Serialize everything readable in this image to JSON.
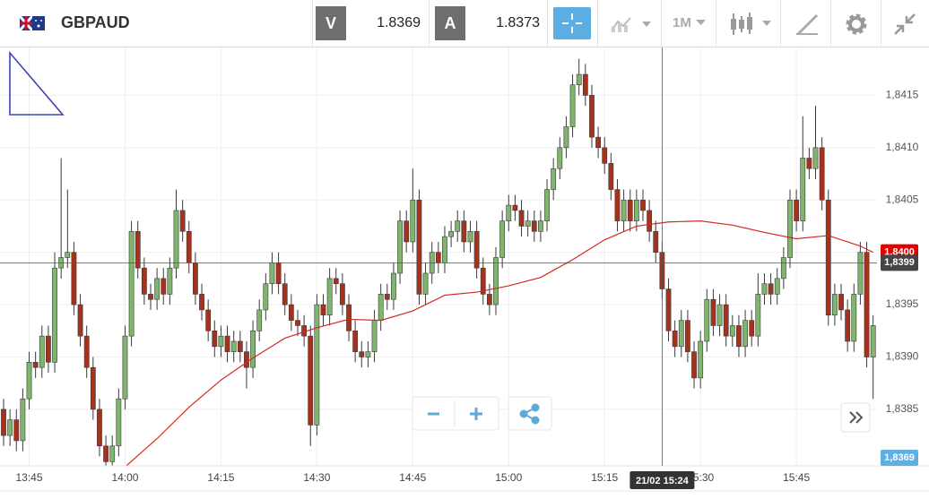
{
  "toolbar": {
    "symbol": "GBPAUD",
    "bid_label": "V",
    "bid": 1.8369,
    "ask_label": "A",
    "ask": 1.8373,
    "timeframe": "1M"
  },
  "chart_data": {
    "type": "candlestick",
    "x": [
      "13:41",
      "13:42",
      "13:43",
      "13:44",
      "13:45",
      "13:46",
      "13:47",
      "13:48",
      "13:49",
      "13:50",
      "13:51",
      "13:52",
      "13:53",
      "13:54",
      "13:55",
      "13:56",
      "13:57",
      "13:58",
      "13:59",
      "14:00",
      "14:01",
      "14:02",
      "14:03",
      "14:04",
      "14:05",
      "14:06",
      "14:07",
      "14:08",
      "14:09",
      "14:10",
      "14:11",
      "14:12",
      "14:13",
      "14:14",
      "14:15",
      "14:16",
      "14:17",
      "14:18",
      "14:19",
      "14:20",
      "14:21",
      "14:22",
      "14:23",
      "14:24",
      "14:25",
      "14:26",
      "14:27",
      "14:28",
      "14:29",
      "14:30",
      "14:31",
      "14:32",
      "14:33",
      "14:34",
      "14:35",
      "14:36",
      "14:37",
      "14:38",
      "14:39",
      "14:40",
      "14:41",
      "14:42",
      "14:43",
      "14:44",
      "14:45",
      "14:46",
      "14:47",
      "14:48",
      "14:49",
      "14:50",
      "14:51",
      "14:52",
      "14:53",
      "14:54",
      "14:55",
      "14:56",
      "14:57",
      "14:58",
      "14:59",
      "15:00",
      "15:01",
      "15:02",
      "15:03",
      "15:04",
      "15:05",
      "15:06",
      "15:07",
      "15:08",
      "15:09",
      "15:10",
      "15:11",
      "15:12",
      "15:13",
      "15:14",
      "15:15",
      "15:16",
      "15:17",
      "15:18",
      "15:19",
      "15:20",
      "15:21",
      "15:22",
      "15:23",
      "15:24",
      "15:25",
      "15:26",
      "15:27",
      "15:28",
      "15:29",
      "15:30",
      "15:31",
      "15:32",
      "15:33",
      "15:34",
      "15:35",
      "15:36",
      "15:37",
      "15:38",
      "15:39",
      "15:40",
      "15:41",
      "15:42",
      "15:43",
      "15:44",
      "15:45",
      "15:46",
      "15:47",
      "15:48",
      "15:49",
      "15:50",
      "15:51",
      "15:52",
      "15:53",
      "15:54",
      "15:55",
      "15:56",
      "15:57"
    ],
    "open": [
      1.8385,
      1.83825,
      1.8384,
      1.8382,
      1.8386,
      1.83895,
      1.8389,
      1.8392,
      1.83895,
      1.83985,
      1.83995,
      1.84,
      1.8395,
      1.8392,
      1.8389,
      1.8385,
      1.83815,
      1.838,
      1.83815,
      1.8386,
      1.8392,
      1.8402,
      1.83985,
      1.8396,
      1.83955,
      1.83975,
      1.8396,
      1.83985,
      1.8404,
      1.8402,
      1.8399,
      1.8396,
      1.83945,
      1.83925,
      1.8391,
      1.8392,
      1.83905,
      1.83915,
      1.83905,
      1.8389,
      1.83925,
      1.83945,
      1.8397,
      1.8399,
      1.8397,
      1.8395,
      1.83935,
      1.8393,
      1.8392,
      1.83835,
      1.8395,
      1.8394,
      1.83975,
      1.8397,
      1.8395,
      1.83925,
      1.83905,
      1.839,
      1.83905,
      1.83935,
      1.8396,
      1.83955,
      1.8398,
      1.8403,
      1.8401,
      1.8405,
      1.8396,
      1.8398,
      1.84,
      1.8399,
      1.84015,
      1.8402,
      1.8403,
      1.8401,
      1.8402,
      1.83985,
      1.8396,
      1.8395,
      1.83995,
      1.8403,
      1.84045,
      1.8404,
      1.84025,
      1.8403,
      1.8402,
      1.8403,
      1.8406,
      1.8408,
      1.841,
      1.8412,
      1.8416,
      1.8417,
      1.8415,
      1.8411,
      1.841,
      1.84085,
      1.8406,
      1.8403,
      1.8405,
      1.8403,
      1.8405,
      1.8404,
      1.8402,
      1.84,
      1.83965,
      1.83925,
      1.8391,
      1.83935,
      1.83905,
      1.8388,
      1.83915,
      1.83955,
      1.8393,
      1.8395,
      1.8392,
      1.8393,
      1.8391,
      1.83935,
      1.8392,
      1.8396,
      1.8397,
      1.8396,
      1.83975,
      1.83995,
      1.8405,
      1.8403,
      1.8409,
      1.8408,
      1.841,
      1.8405,
      1.8394,
      1.8396,
      1.83945,
      1.83915,
      1.8396,
      1.84,
      1.839
    ],
    "high": [
      1.8386,
      1.8385,
      1.8385,
      1.8387,
      1.83905,
      1.83905,
      1.8393,
      1.8393,
      1.84,
      1.8409,
      1.8406,
      1.8401,
      1.8396,
      1.8393,
      1.839,
      1.8386,
      1.83825,
      1.83825,
      1.8387,
      1.8393,
      1.8403,
      1.8403,
      1.83995,
      1.8397,
      1.83985,
      1.83985,
      1.83995,
      1.8406,
      1.8405,
      1.8403,
      1.84,
      1.8397,
      1.83955,
      1.83935,
      1.8393,
      1.8393,
      1.83925,
      1.83925,
      1.83915,
      1.83935,
      1.83955,
      1.8398,
      1.84,
      1.84,
      1.8398,
      1.8396,
      1.83945,
      1.8394,
      1.8393,
      1.8396,
      1.8396,
      1.83985,
      1.83985,
      1.8398,
      1.8396,
      1.83935,
      1.83915,
      1.83915,
      1.83945,
      1.8397,
      1.8397,
      1.8399,
      1.8404,
      1.8404,
      1.8408,
      1.8406,
      1.8399,
      1.8401,
      1.8401,
      1.84025,
      1.8403,
      1.8404,
      1.8404,
      1.8403,
      1.8403,
      1.83995,
      1.8397,
      1.84005,
      1.8404,
      1.84055,
      1.84055,
      1.8405,
      1.8404,
      1.8404,
      1.8404,
      1.8407,
      1.8409,
      1.8411,
      1.8413,
      1.8417,
      1.84185,
      1.8418,
      1.8416,
      1.8412,
      1.8411,
      1.84095,
      1.8407,
      1.8406,
      1.8406,
      1.8406,
      1.8406,
      1.8405,
      1.8403,
      1.8401,
      1.83975,
      1.83935,
      1.83945,
      1.83945,
      1.83915,
      1.83925,
      1.83965,
      1.83965,
      1.8396,
      1.8396,
      1.8394,
      1.8394,
      1.83945,
      1.83945,
      1.8398,
      1.8398,
      1.8398,
      1.83985,
      1.84005,
      1.8406,
      1.8406,
      1.8413,
      1.841,
      1.8414,
      1.8411,
      1.8406,
      1.8397,
      1.8397,
      1.83955,
      1.8397,
      1.8401,
      1.8401,
      1.8394
    ],
    "low": [
      1.83815,
      1.83815,
      1.8381,
      1.8381,
      1.8385,
      1.8388,
      1.8388,
      1.83885,
      1.83885,
      1.83975,
      1.83985,
      1.8394,
      1.8391,
      1.8388,
      1.8384,
      1.83805,
      1.8379,
      1.8379,
      1.83805,
      1.8385,
      1.8391,
      1.83975,
      1.8395,
      1.83945,
      1.83945,
      1.8395,
      1.8395,
      1.83975,
      1.8401,
      1.8398,
      1.8395,
      1.83935,
      1.83915,
      1.839,
      1.839,
      1.83895,
      1.83895,
      1.83895,
      1.8387,
      1.8388,
      1.83915,
      1.83935,
      1.8396,
      1.8396,
      1.8394,
      1.83925,
      1.8392,
      1.8391,
      1.83815,
      1.83825,
      1.8393,
      1.8393,
      1.8396,
      1.8394,
      1.83915,
      1.83895,
      1.8389,
      1.8389,
      1.83895,
      1.83925,
      1.83945,
      1.83945,
      1.8397,
      1.84,
      1.84,
      1.8395,
      1.8395,
      1.8397,
      1.8398,
      1.8398,
      1.84005,
      1.8401,
      1.84,
      1.84,
      1.83975,
      1.8395,
      1.8394,
      1.8394,
      1.83985,
      1.8402,
      1.8403,
      1.84015,
      1.84015,
      1.8401,
      1.8401,
      1.8402,
      1.8405,
      1.8407,
      1.8409,
      1.8411,
      1.8415,
      1.8414,
      1.841,
      1.8409,
      1.84075,
      1.8405,
      1.8402,
      1.8402,
      1.8402,
      1.8402,
      1.8403,
      1.8401,
      1.8399,
      1.83955,
      1.83915,
      1.839,
      1.839,
      1.83895,
      1.8387,
      1.8387,
      1.83905,
      1.8392,
      1.8392,
      1.8391,
      1.8391,
      1.839,
      1.839,
      1.8391,
      1.8391,
      1.8395,
      1.8395,
      1.8395,
      1.83965,
      1.83985,
      1.8402,
      1.8402,
      1.8407,
      1.8407,
      1.8404,
      1.8393,
      1.8393,
      1.83935,
      1.83905,
      1.83905,
      1.8395,
      1.8389,
      1.8386
    ],
    "close": [
      1.83825,
      1.8384,
      1.8382,
      1.8386,
      1.83895,
      1.8389,
      1.8392,
      1.83895,
      1.83985,
      1.83995,
      1.84,
      1.8395,
      1.8392,
      1.8389,
      1.8385,
      1.83815,
      1.838,
      1.83815,
      1.8386,
      1.8392,
      1.8402,
      1.83985,
      1.8396,
      1.83955,
      1.83975,
      1.8396,
      1.83985,
      1.8404,
      1.8402,
      1.8399,
      1.8396,
      1.83945,
      1.83925,
      1.8391,
      1.8392,
      1.83905,
      1.83915,
      1.83905,
      1.8389,
      1.83925,
      1.83945,
      1.8397,
      1.8399,
      1.8397,
      1.8395,
      1.83935,
      1.8393,
      1.8392,
      1.83835,
      1.8395,
      1.8394,
      1.83975,
      1.8397,
      1.8395,
      1.83925,
      1.83905,
      1.839,
      1.83905,
      1.83935,
      1.8396,
      1.83955,
      1.8398,
      1.8403,
      1.8401,
      1.8405,
      1.8396,
      1.8398,
      1.84,
      1.8399,
      1.84015,
      1.8402,
      1.8403,
      1.8401,
      1.8402,
      1.83985,
      1.8396,
      1.8395,
      1.83995,
      1.8403,
      1.84045,
      1.8404,
      1.84025,
      1.8403,
      1.8402,
      1.8403,
      1.8406,
      1.8408,
      1.841,
      1.8412,
      1.8416,
      1.8417,
      1.8415,
      1.8411,
      1.841,
      1.84085,
      1.8406,
      1.8403,
      1.8405,
      1.8403,
      1.8405,
      1.8404,
      1.8402,
      1.84,
      1.83965,
      1.83925,
      1.8391,
      1.83935,
      1.83905,
      1.8388,
      1.83915,
      1.83955,
      1.8393,
      1.8395,
      1.8392,
      1.8393,
      1.8391,
      1.83935,
      1.8392,
      1.8396,
      1.8397,
      1.8396,
      1.83975,
      1.83995,
      1.8405,
      1.8403,
      1.8409,
      1.8408,
      1.841,
      1.8405,
      1.8394,
      1.8396,
      1.83945,
      1.83915,
      1.8396,
      1.84,
      1.839,
      1.8393
    ],
    "up_color": "#7fb56c",
    "down_color": "#a5321c",
    "ylim": [
      1.83796,
      1.84194
    ],
    "yticks": [
      {
        "value": 1.8385,
        "label": "1,8385"
      },
      {
        "value": 1.839,
        "label": "1,8390"
      },
      {
        "value": 1.8395,
        "label": "1,8395"
      },
      {
        "value": 1.84,
        "label": "1,8400"
      },
      {
        "value": 1.8405,
        "label": "1,8405"
      },
      {
        "value": 1.841,
        "label": "1,8410"
      },
      {
        "value": 1.8415,
        "label": "1,8415"
      }
    ],
    "xticks": [
      "13:45",
      "14:00",
      "14:15",
      "14:30",
      "14:45",
      "15:00",
      "15:15",
      "15:30",
      "15:45"
    ],
    "grid": true,
    "series": [
      {
        "type": "line",
        "color": "#d42a20",
        "x": [
          "14:00",
          "14:05",
          "14:10",
          "14:15",
          "14:20",
          "14:25",
          "14:30",
          "14:35",
          "14:40",
          "14:45",
          "14:50",
          "14:55",
          "15:00",
          "15:05",
          "15:10",
          "15:15",
          "15:20",
          "15:25",
          "15:30",
          "15:35",
          "15:40",
          "15:45",
          "15:50",
          "15:55",
          "15:57"
        ],
        "values": [
          1.83795,
          1.83822,
          1.83852,
          1.83878,
          1.83899,
          1.83918,
          1.83928,
          1.83936,
          1.83935,
          1.83944,
          1.83959,
          1.83962,
          1.83968,
          1.83976,
          1.83993,
          1.84012,
          1.84025,
          1.84029,
          1.8403,
          1.84026,
          1.84019,
          1.84013,
          1.84016,
          1.84006,
          1.84
        ]
      }
    ],
    "price_tags": [
      {
        "value": 1.84,
        "label": "1,8400",
        "color": "#e00000"
      },
      {
        "label": "1,8369",
        "color": "#5fb0e2"
      }
    ],
    "crosshair": {
      "x": "15:24",
      "x_label": "21/02 15:24",
      "y": {
        "value": 1.8399,
        "label": "1,8399"
      },
      "color": "#555555"
    }
  }
}
